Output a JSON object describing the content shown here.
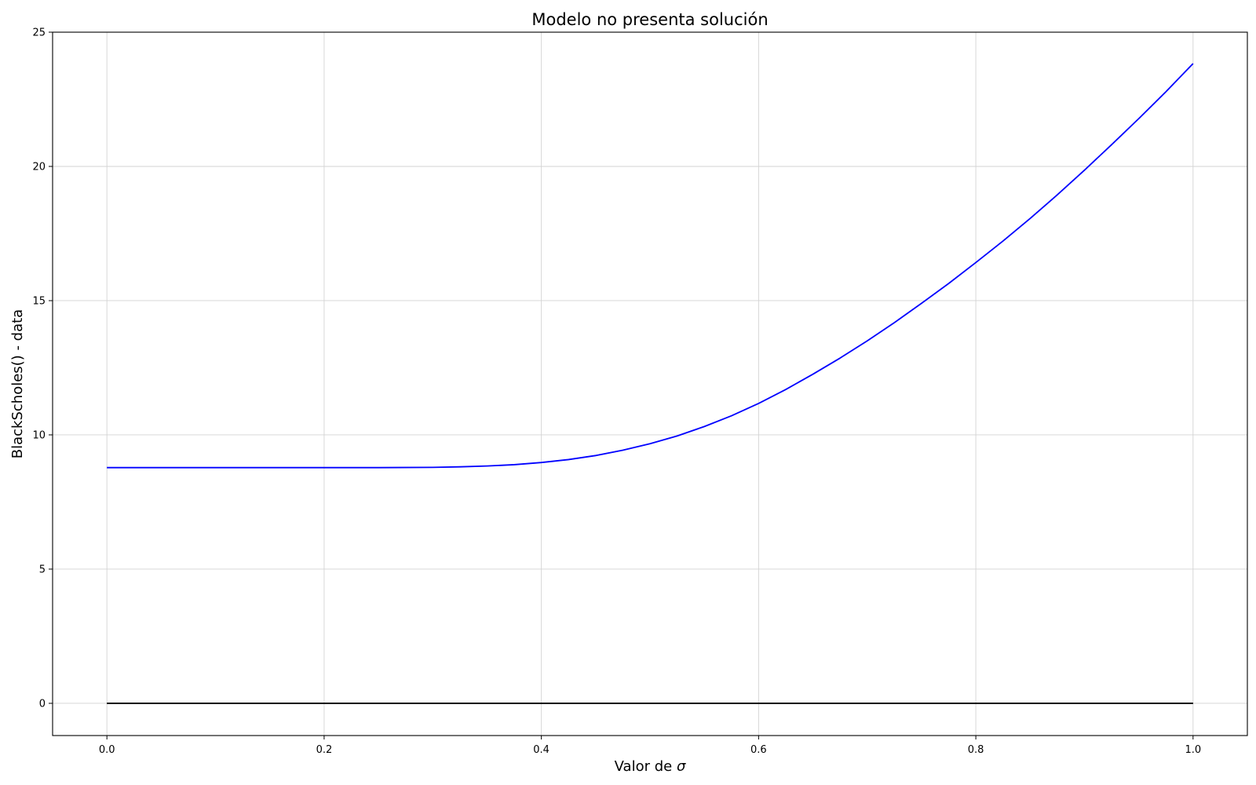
{
  "chart_data": {
    "type": "line",
    "title": "Modelo no presenta solución",
    "xlabel_prefix": "Valor de ",
    "xlabel_symbol": "σ",
    "ylabel": "BlackScholes() - data",
    "xlim": [
      -0.05,
      1.05
    ],
    "ylim": [
      -1.2,
      25
    ],
    "xticks": [
      0.0,
      0.2,
      0.4,
      0.6,
      0.8,
      1.0
    ],
    "xtick_labels": [
      "0.0",
      "0.2",
      "0.4",
      "0.6",
      "0.8",
      "1.0"
    ],
    "yticks": [
      0,
      5,
      10,
      15,
      20,
      25
    ],
    "ytick_labels": [
      "0",
      "5",
      "10",
      "15",
      "20",
      "25"
    ],
    "grid": true,
    "series": [
      {
        "color": "#0000ff",
        "x": [
          0.0,
          0.05,
          0.1,
          0.15,
          0.2,
          0.25,
          0.3,
          0.325,
          0.35,
          0.375,
          0.4,
          0.425,
          0.45,
          0.475,
          0.5,
          0.525,
          0.55,
          0.575,
          0.6,
          0.625,
          0.65,
          0.675,
          0.7,
          0.725,
          0.75,
          0.775,
          0.8,
          0.825,
          0.85,
          0.875,
          0.9,
          0.925,
          0.95,
          0.975,
          1.0
        ],
        "y": [
          8.78,
          8.78,
          8.78,
          8.78,
          8.78,
          8.78,
          8.79,
          8.81,
          8.84,
          8.89,
          8.97,
          9.08,
          9.23,
          9.43,
          9.67,
          9.96,
          10.31,
          10.71,
          11.17,
          11.69,
          12.26,
          12.86,
          13.5,
          14.18,
          14.9,
          15.64,
          16.42,
          17.22,
          18.06,
          18.94,
          19.86,
          20.81,
          21.78,
          22.78,
          23.83
        ]
      },
      {
        "color": "#000000",
        "x": [
          0.0,
          1.0
        ],
        "y": [
          0.0,
          0.0
        ]
      }
    ]
  }
}
